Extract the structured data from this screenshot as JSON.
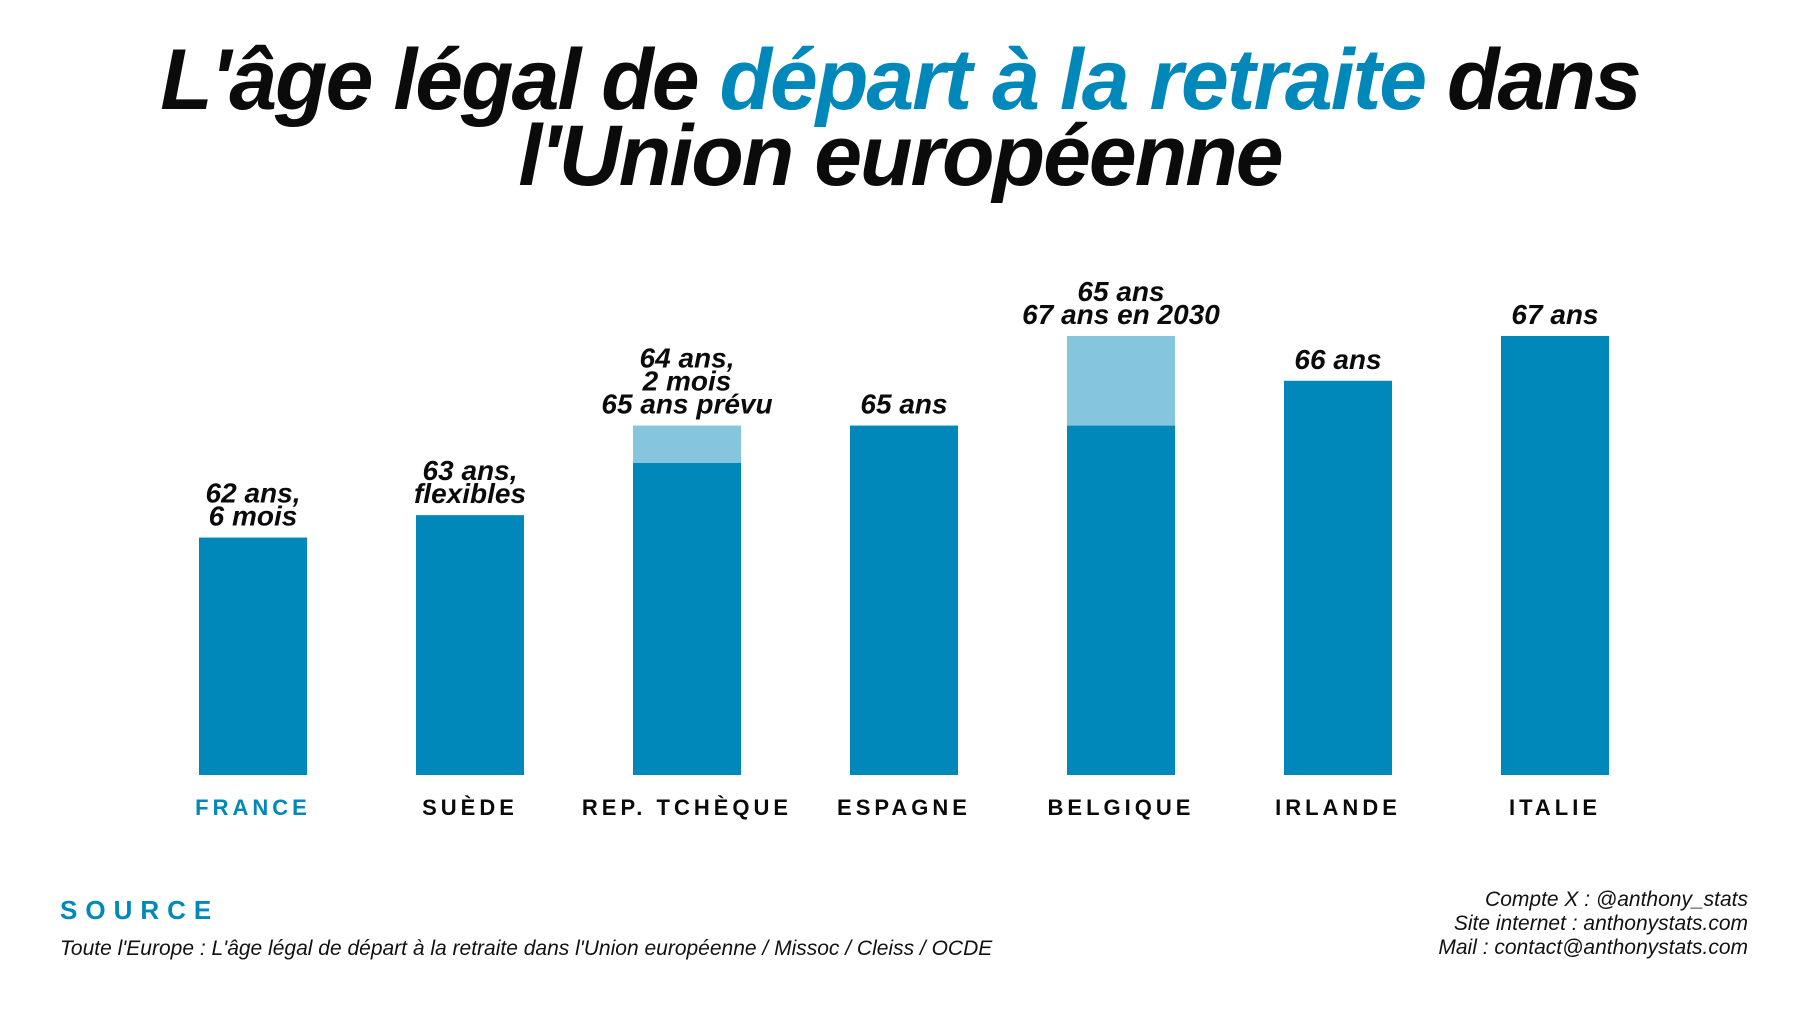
{
  "title": {
    "part1": "L'âge légal de ",
    "highlight": "départ à la retraite",
    "part2": " dans",
    "line2": "l'Union européenne"
  },
  "colors": {
    "primary": "#0088bb",
    "secondary": "#86c5de",
    "text": "#0b0b0b",
    "highlight_category": "#0088bb"
  },
  "chart_data": {
    "type": "bar",
    "title": "L'âge légal de départ à la retraite dans l'Union européenne",
    "categories": [
      "FRANCE",
      "SUÈDE",
      "REP. TCHÈQUE",
      "ESPAGNE",
      "BELGIQUE",
      "IRLANDE",
      "ITALIE"
    ],
    "series": [
      {
        "values": [
          62.5,
          63,
          64.17,
          65,
          65,
          66,
          67
        ]
      },
      {
        "values": [
          0,
          0,
          0.83,
          0,
          2,
          0,
          0
        ]
      }
    ],
    "stacked": true,
    "value_labels": [
      [
        "62 ans,",
        "6 mois"
      ],
      [
        "63 ans,",
        "flexibles"
      ],
      [
        "64 ans,",
        "2 mois",
        "65 ans prévu"
      ],
      [
        "65 ans"
      ],
      [
        "65 ans",
        "67 ans en 2030"
      ],
      [
        "66 ans"
      ],
      [
        "67 ans"
      ]
    ],
    "highlighted_category": "FRANCE",
    "axis_visible": false,
    "grid": false,
    "legend": "none"
  },
  "source": {
    "heading": "SOURCE",
    "text": "Toute l'Europe : L'âge légal de départ à la retraite dans l'Union européenne / Missoc   /   Cleiss   /   OCDE"
  },
  "credits": {
    "x_account": "Compte X : @anthony_stats",
    "website": "Site internet : anthonystats.com",
    "mail": "Mail : contact@anthonystats.com"
  }
}
